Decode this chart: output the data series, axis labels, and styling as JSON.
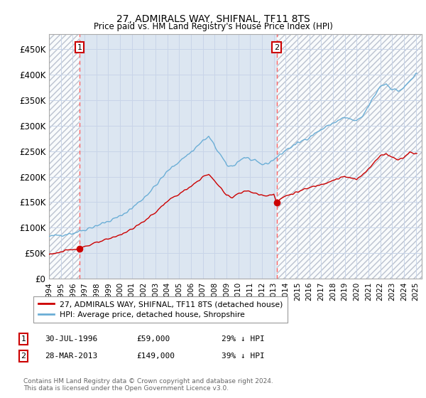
{
  "title": "27, ADMIRALS WAY, SHIFNAL, TF11 8TS",
  "subtitle": "Price paid vs. HM Land Registry's House Price Index (HPI)",
  "hpi_label": "HPI: Average price, detached house, Shropshire",
  "property_label": "27, ADMIRALS WAY, SHIFNAL, TF11 8TS (detached house)",
  "hpi_color": "#6baed6",
  "property_color": "#cc0000",
  "dashed_color": "#ff6666",
  "marker_color": "#cc0000",
  "annotation_box_color": "#cc0000",
  "background_color": "#dce6f1",
  "hatch_color": "#b0b8c8",
  "grid_color": "#c8d4e8",
  "ylim": [
    0,
    480000
  ],
  "yticks": [
    0,
    50000,
    100000,
    150000,
    200000,
    250000,
    300000,
    350000,
    400000,
    450000
  ],
  "ytick_labels": [
    "£0",
    "£50K",
    "£100K",
    "£150K",
    "£200K",
    "£250K",
    "£300K",
    "£350K",
    "£400K",
    "£450K"
  ],
  "ann1_label": "1",
  "ann1_date": "30-JUL-1996",
  "ann1_price": 59000,
  "ann1_hpi_pct": "29% ↓ HPI",
  "ann1_x": 1996.57,
  "ann2_label": "2",
  "ann2_date": "28-MAR-2013",
  "ann2_price": 149000,
  "ann2_hpi_pct": "39% ↓ HPI",
  "ann2_x": 2013.24,
  "footer": "Contains HM Land Registry data © Crown copyright and database right 2024.\nThis data is licensed under the Open Government Licence v3.0.",
  "xlim": [
    1994.0,
    2025.5
  ],
  "xticks": [
    1994,
    1995,
    1996,
    1997,
    1998,
    1999,
    2000,
    2001,
    2002,
    2003,
    2004,
    2005,
    2006,
    2007,
    2008,
    2009,
    2010,
    2011,
    2012,
    2013,
    2014,
    2015,
    2016,
    2017,
    2018,
    2019,
    2020,
    2021,
    2022,
    2023,
    2024,
    2025
  ]
}
